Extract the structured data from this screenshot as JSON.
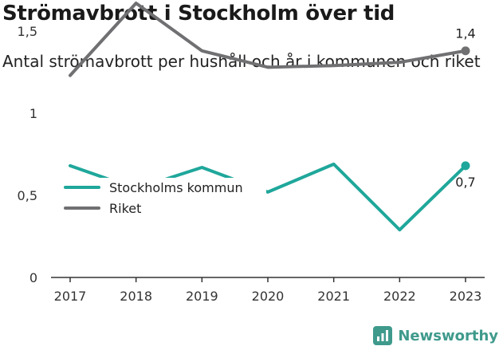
{
  "title": "Strömavbrott i Stockholm över tid",
  "subtitle": "Antal strömavbrott per hushåll och år i kommunen och riket",
  "brand": {
    "name": "Newsworthy",
    "icon": "newsworthy-logo-icon"
  },
  "colors": {
    "kommun": "#1fa79b",
    "riket": "#707073",
    "axis": "#333333",
    "grid": "#e6e6e6"
  },
  "chart_data": {
    "type": "line",
    "x": [
      "2017",
      "2018",
      "2019",
      "2020",
      "2021",
      "2022",
      "2023"
    ],
    "ylim": [
      0,
      1.75
    ],
    "yticks": [
      {
        "value": 0,
        "label": "0"
      },
      {
        "value": 0.5,
        "label": "0,5"
      },
      {
        "value": 1,
        "label": "1"
      },
      {
        "value": 1.5,
        "label": "1,5"
      }
    ],
    "grid": false,
    "legend_position": "left",
    "series": [
      {
        "name": "Stockholms kommun",
        "values": [
          0.68,
          0.54,
          0.67,
          0.52,
          0.69,
          0.29,
          0.68
        ],
        "end_label": "0,7",
        "color": "#1fa79b"
      },
      {
        "name": "Riket",
        "values": [
          1.23,
          1.67,
          1.38,
          1.28,
          1.29,
          1.31,
          1.38
        ],
        "end_label": "1,4",
        "color": "#707073"
      }
    ]
  }
}
